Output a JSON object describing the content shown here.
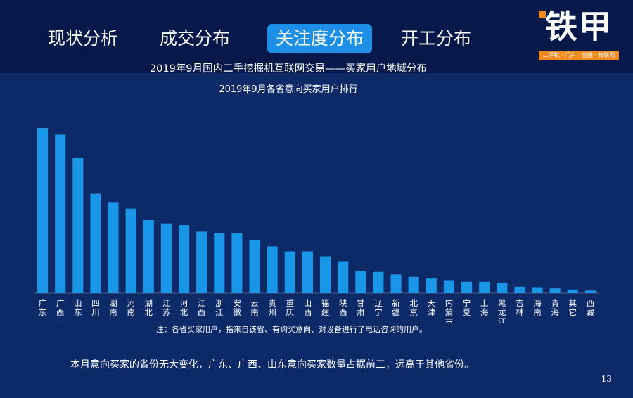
{
  "nav": {
    "tabs": [
      {
        "label": "现状分析",
        "active": false
      },
      {
        "label": "成交分布",
        "active": false
      },
      {
        "label": "关注度分布",
        "active": true
      },
      {
        "label": "开工分布",
        "active": false
      }
    ]
  },
  "logo": {
    "text": "铁甲",
    "tagline": "二手机 · 门户 · 金融 · 物联网"
  },
  "colors": {
    "background": "#0c2a68",
    "top_band": "#07194a",
    "bar": "#1a96e8",
    "active_tab": "#1d8fe6",
    "logo_accent": "#f08a1c"
  },
  "chart_data": {
    "type": "bar",
    "title": "2019年9月国内二手挖掘机互联网交易——买家用户地域分布",
    "subtitle": "2019年9月各省意向买家用户排行",
    "categories": [
      "广东",
      "广西",
      "山东",
      "四川",
      "湖南",
      "河南",
      "湖北",
      "江苏",
      "河北",
      "江西",
      "浙江",
      "安徽",
      "云南",
      "贵州",
      "重庆",
      "山西",
      "福建",
      "陕西",
      "甘肃",
      "辽宁",
      "新疆",
      "北京",
      "天津",
      "内蒙古",
      "宁夏",
      "上海",
      "黑龙江",
      "吉林",
      "海南",
      "青海",
      "其它",
      "西藏"
    ],
    "values": [
      100,
      96,
      82,
      60,
      55,
      51,
      44,
      42,
      41,
      37,
      36,
      36,
      32,
      28,
      25,
      25,
      22,
      19,
      13,
      12.5,
      11,
      9.5,
      8.5,
      7.5,
      6.5,
      6.5,
      6,
      3.5,
      3.2,
      2.5,
      1.8,
      1.2
    ],
    "ylim": [
      0,
      100
    ],
    "axis_visible": false,
    "grid": false,
    "legend": "none",
    "note": "注：各省买家用户，指来自该省、有购买意向、对设备进行了电话咨询的用户。"
  },
  "summary": "本月意向买家的省份无大变化，广东、广西、山东意向买家数量占据前三，远高于其他省份。",
  "page_number": "13"
}
